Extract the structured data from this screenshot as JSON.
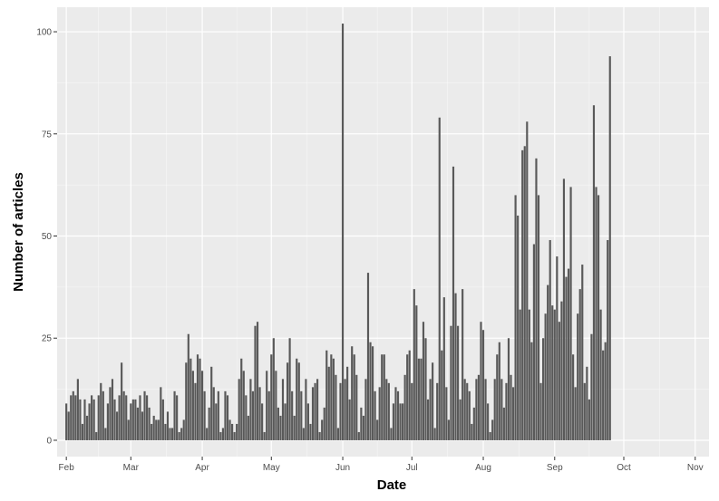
{
  "chart_data": {
    "type": "bar",
    "xlabel": "Date",
    "ylabel": "Number of articles",
    "x_range": [
      "2019-01-28",
      "2019-11-07"
    ],
    "ylim": [
      -4,
      106
    ],
    "grid": true,
    "legend": "none",
    "x_ticks": [
      {
        "date": "2019-02-01",
        "label": "Feb"
      },
      {
        "date": "2019-03-01",
        "label": "Mar"
      },
      {
        "date": "2019-04-01",
        "label": "Apr"
      },
      {
        "date": "2019-05-01",
        "label": "May"
      },
      {
        "date": "2019-06-01",
        "label": "Jun"
      },
      {
        "date": "2019-07-01",
        "label": "Jul"
      },
      {
        "date": "2019-08-01",
        "label": "Aug"
      },
      {
        "date": "2019-09-01",
        "label": "Sep"
      },
      {
        "date": "2019-10-01",
        "label": "Oct"
      },
      {
        "date": "2019-11-01",
        "label": "Nov"
      }
    ],
    "y_ticks": [
      0,
      25,
      50,
      75,
      100
    ],
    "bar_start": "2019-02-01",
    "values": [
      9,
      7,
      11,
      12,
      11,
      15,
      10,
      4,
      10,
      6,
      9,
      11,
      10,
      2,
      11,
      14,
      12,
      3,
      9,
      13,
      15,
      10,
      7,
      11,
      19,
      12,
      11,
      5,
      9,
      10,
      10,
      8,
      11,
      7,
      12,
      11,
      8,
      4,
      6,
      5,
      5,
      13,
      10,
      4,
      7,
      3,
      3,
      12,
      11,
      2,
      3,
      5,
      19,
      26,
      20,
      17,
      14,
      21,
      20,
      17,
      12,
      3,
      8,
      18,
      13,
      9,
      12,
      2,
      3,
      12,
      11,
      5,
      4,
      2,
      4,
      15,
      20,
      17,
      11,
      6,
      15,
      12,
      28,
      29,
      13,
      9,
      2,
      17,
      12,
      21,
      25,
      17,
      8,
      6,
      15,
      9,
      19,
      25,
      12,
      6,
      20,
      19,
      12,
      3,
      15,
      9,
      4,
      13,
      14,
      15,
      2,
      5,
      8,
      22,
      18,
      21,
      20,
      16,
      3,
      14,
      102,
      15,
      18,
      10,
      23,
      21,
      16,
      2,
      8,
      6,
      15,
      41,
      24,
      23,
      12,
      5,
      13,
      21,
      21,
      15,
      14,
      3,
      9,
      13,
      12,
      9,
      9,
      16,
      21,
      22,
      14,
      37,
      33,
      20,
      20,
      29,
      25,
      10,
      15,
      19,
      3,
      14,
      79,
      22,
      35,
      13,
      5,
      28,
      67,
      36,
      28,
      10,
      37,
      15,
      14,
      12,
      4,
      8,
      15,
      16,
      29,
      27,
      15,
      9,
      2,
      5,
      15,
      21,
      24,
      15,
      8,
      14,
      25,
      16,
      13,
      60,
      55,
      32,
      71,
      72,
      78,
      32,
      24,
      48,
      69,
      60,
      14,
      25,
      31,
      38,
      49,
      33,
      32,
      45,
      29,
      34,
      64,
      40,
      42,
      62,
      21,
      13,
      31,
      37,
      43,
      14,
      18,
      10,
      26,
      82,
      62,
      60,
      32,
      22,
      24,
      49,
      94
    ]
  }
}
